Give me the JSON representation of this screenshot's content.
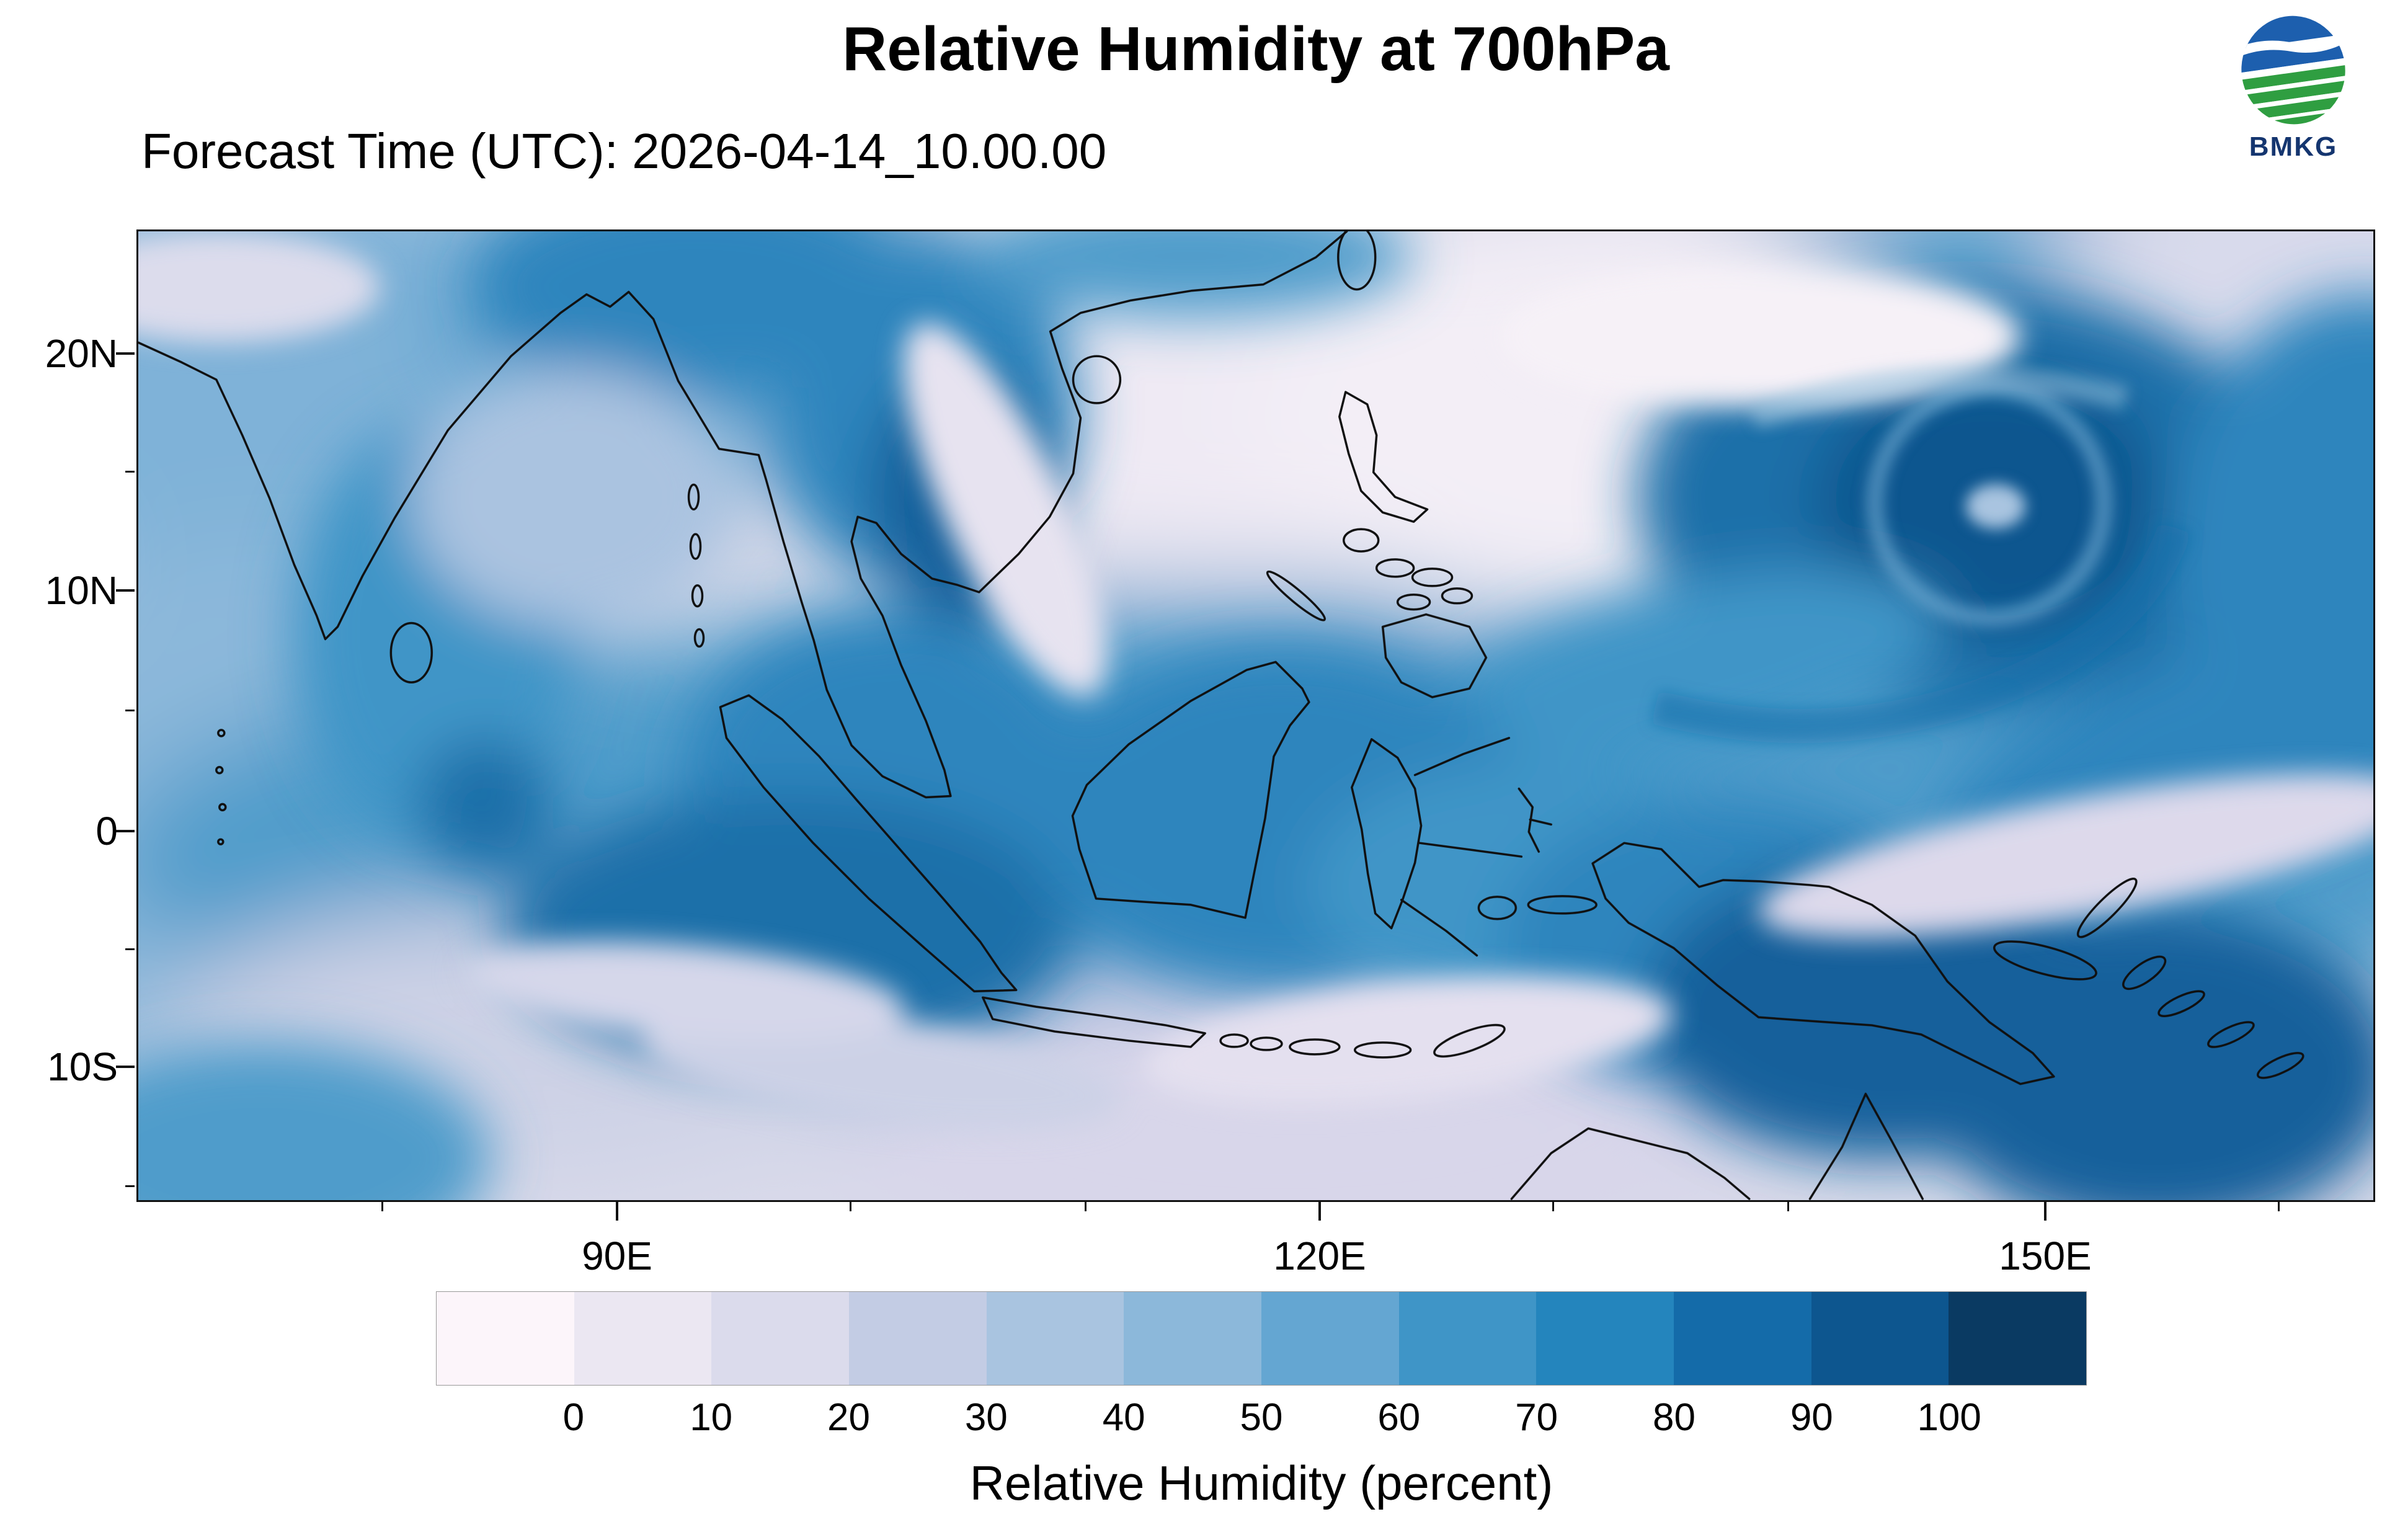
{
  "header": {
    "title": "Relative Humidity at 700hPa",
    "forecast_label": "Forecast Time (UTC): 2026-04-14_10.00.00",
    "agency": "BMKG"
  },
  "map": {
    "lat_tick_labels": [
      "20N",
      "10N",
      "0",
      "10S"
    ],
    "lon_tick_labels": [
      "90E",
      "120E",
      "150E"
    ]
  },
  "colorbar": {
    "tick_labels": [
      "0",
      "10",
      "20",
      "30",
      "40",
      "50",
      "60",
      "70",
      "80",
      "90",
      "100"
    ],
    "colors": [
      "#fcf5fa",
      "#ebe7f2",
      "#dbdbec",
      "#c3cce4",
      "#a9c4e0",
      "#8cb8da",
      "#64a6d2",
      "#3f95c7",
      "#2485bd",
      "#146ba9",
      "#0d568f",
      "#0a3a62"
    ],
    "caption": "Relative Humidity (percent)"
  },
  "chart_data": {
    "type": "heatmap",
    "title": "Relative Humidity at 700hPa",
    "subtitle": "Forecast Time (UTC): 2026-04-14_10.00.00",
    "variable": "Relative Humidity",
    "units": "percent",
    "pressure_level": "700hPa",
    "x_axis": {
      "axis": "longitude",
      "tick_labels": [
        "90E",
        "120E",
        "150E"
      ]
    },
    "y_axis": {
      "axis": "latitude",
      "tick_labels": [
        "20N",
        "10N",
        "0",
        "10S"
      ]
    },
    "colorbar": {
      "levels": [
        0,
        10,
        20,
        30,
        40,
        50,
        60,
        70,
        80,
        90,
        100
      ],
      "colors": [
        "#fcf5fa",
        "#ebe7f2",
        "#dbdbec",
        "#c3cce4",
        "#a9c4e0",
        "#8cb8da",
        "#64a6d2",
        "#3f95c7",
        "#2485bd",
        "#146ba9",
        "#0d568f",
        "#0a3a62"
      ],
      "caption": "Relative Humidity (percent)",
      "position": "bottom"
    },
    "field_summary": [
      {
        "region": "equatorial band over Sumatra, Borneo, Sulawesi and New Guinea",
        "rh_percent": "70-90"
      },
      {
        "region": "tropical-cyclone circulation over western Pacific near 150E 15N",
        "rh_percent": "80-100"
      },
      {
        "region": "South China Sea / western Philippine Sea subsidence zone",
        "rh_percent": "0-20"
      },
      {
        "region": "filamentary dry streaks south of Java to Timor Sea",
        "rh_percent": "10-40"
      },
      {
        "region": "Bay of Bengal, Indochina and eastern India",
        "rh_percent": "60-90"
      }
    ]
  }
}
